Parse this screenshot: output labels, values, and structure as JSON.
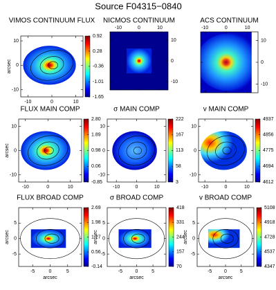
{
  "title": "Source F04315−0840",
  "chart_data": [
    {
      "type": "image",
      "title": "VIMOS CONTINUUM FLUX",
      "ylabel": "arcsec",
      "xlim": [
        -13,
        13
      ],
      "ylim": [
        -13,
        12
      ],
      "xticks": [
        -10,
        0,
        10
      ],
      "yticks": [
        -10,
        0,
        10
      ],
      "xaxis": "bottom",
      "yaxis": "left",
      "clim": [
        -1.65,
        0.92
      ],
      "cticks": [
        0.92,
        0.28,
        -0.36,
        -1.01,
        -1.65
      ]
    },
    {
      "type": "image",
      "title": "NICMOS CONTINUUM",
      "xlim": [
        -14,
        14
      ],
      "ylim": [
        -14,
        14
      ],
      "xticks": [
        -10,
        0,
        10
      ],
      "yticks": [
        -10,
        0,
        10
      ],
      "xaxis": "top",
      "yaxis": "right"
    },
    {
      "type": "image",
      "title": "ACS CONTINUUM",
      "xlim": [
        -12,
        15
      ],
      "ylim": [
        -14,
        14
      ],
      "xticks": [
        -10,
        0,
        10
      ],
      "yticks": [
        -10,
        0,
        10
      ],
      "xaxis": "top",
      "yaxis": "right"
    },
    {
      "type": "image",
      "title": "FLUX MAIN COMP",
      "ylabel": "arcsec",
      "xlim": [
        -13,
        15
      ],
      "ylim": [
        -13,
        13
      ],
      "xticks": [
        -10,
        0,
        10
      ],
      "yticks": [
        -10,
        0,
        10
      ],
      "xaxis": "bottom",
      "yaxis": "left",
      "clim": [
        -0.85,
        2.8
      ],
      "cticks": [
        {
          "value": 2.8,
          "label": "2.80"
        },
        1.89,
        0.98,
        0.06,
        -0.85
      ]
    },
    {
      "type": "image",
      "title": "σ MAIN COMP",
      "xlim": [
        -14.5,
        14.5
      ],
      "ylim": [
        -13,
        13
      ],
      "xticks": [
        -10,
        0,
        10
      ],
      "yticks": [
        -10,
        0,
        10
      ],
      "xaxis": "bottom",
      "yaxis": "left",
      "clim": [
        3,
        222
      ],
      "cticks": [
        222,
        167,
        113,
        58,
        3
      ]
    },
    {
      "type": "image",
      "title": "v MAIN COMP",
      "xlim": [
        -13,
        13
      ],
      "ylim": [
        -13,
        13
      ],
      "xticks": [
        -10,
        0,
        10
      ],
      "yticks": [
        -10,
        0,
        10
      ],
      "xaxis": "bottom",
      "yaxis": "left",
      "clim": [
        4612,
        4937
      ],
      "cticks": [
        4937,
        4856,
        4775,
        4694,
        4612
      ]
    },
    {
      "type": "image",
      "title": "FLUX BROAD COMP",
      "xlabel": "arcsec",
      "ylabel": "arcsec",
      "xlim": [
        -9,
        9
      ],
      "ylim": [
        -9,
        10
      ],
      "xticks": [
        -5,
        0,
        5
      ],
      "yticks": [
        -5,
        0,
        5
      ],
      "xaxis": "bottom",
      "yaxis": "left",
      "clim": [
        -0.14,
        2.69
      ],
      "cticks": [
        2.69,
        1.98,
        1.27,
        0.56,
        -0.14
      ]
    },
    {
      "type": "image",
      "title": "σ BROAD COMP",
      "xlabel": "arcsec",
      "ylabel": "arcsec",
      "xlim": [
        -9,
        9
      ],
      "ylim": [
        -9,
        10
      ],
      "xticks": [
        -5,
        0,
        5
      ],
      "yticks": [
        -5,
        0,
        5
      ],
      "xaxis": "bottom",
      "yaxis": "left",
      "clim": [
        70,
        418
      ],
      "cticks": [
        418,
        331,
        244,
        157,
        70
      ]
    },
    {
      "type": "image",
      "title": "v BROAD COMP",
      "xlabel": "arcsec",
      "ylabel": "arcsec",
      "xlim": [
        -9,
        9
      ],
      "ylim": [
        -9,
        10
      ],
      "xticks": [
        -5,
        0,
        5
      ],
      "yticks": [
        -5,
        0,
        5
      ],
      "xaxis": "bottom",
      "yaxis": "left",
      "clim": [
        4347,
        5108
      ],
      "cticks": [
        5108,
        4918,
        4728,
        4537,
        4347
      ]
    }
  ]
}
